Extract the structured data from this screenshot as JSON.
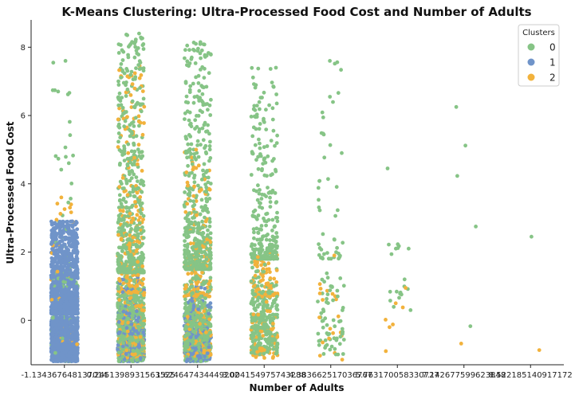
{
  "chart_data": {
    "type": "scatter",
    "subtype": "strip",
    "title": "K-Means Clustering: Ultra-Processed Food Cost and Number of Adults",
    "xlabel": "Number of Adults",
    "ylabel": "Ultra-Processed Food Cost",
    "categories": [
      "-1.134367648137014",
      "0.2451398931563525",
      "1.624647434449202",
      "3.004154975743288",
      "4.383662517036767",
      "5.763170058330727",
      "7.142677599623848",
      "8.522185140917172"
    ],
    "y_ticks": [
      0,
      2,
      4,
      6,
      8
    ],
    "ylim": [
      -1.3,
      8.8
    ],
    "grid": false,
    "legend": {
      "title": "Clusters",
      "position": "top-right",
      "entries": [
        "0",
        "1",
        "2"
      ]
    },
    "colors": {
      "0": "#86c486",
      "1": "#7094c9",
      "2": "#f2b23c"
    },
    "series": [
      {
        "name": "0",
        "stats": [
          {
            "category": "-1.134367648137014",
            "count": 120,
            "min": -1.2,
            "max": 7.6,
            "median": 1.0
          },
          {
            "category": "0.2451398931563525",
            "count": 1100,
            "min": -1.2,
            "max": 8.4,
            "median": 1.4
          },
          {
            "category": "1.624647434449202",
            "count": 1000,
            "min": -1.2,
            "max": 8.15,
            "median": 1.5
          },
          {
            "category": "3.004154975743288",
            "count": 550,
            "min": -1.0,
            "max": 7.4,
            "median": 1.8
          },
          {
            "category": "4.383662517036767",
            "count": 110,
            "min": -1.0,
            "max": 7.6,
            "median": 1.8
          },
          {
            "category": "5.763170058330727",
            "count": 20,
            "min": 0.3,
            "max": 4.45,
            "median": 2.1
          },
          {
            "category": "7.142677599623848",
            "count": 0,
            "min": null,
            "max": null,
            "median": null
          }
        ],
        "points": [
          {
            "category": "7.142677599623848",
            "y": 6.25
          },
          {
            "category": "7.142677599623848",
            "y": 5.12
          },
          {
            "category": "7.142677599623848",
            "y": 4.23
          },
          {
            "category": "7.142677599623848",
            "y": 2.75
          },
          {
            "category": "7.142677599623848",
            "y": -0.17
          },
          {
            "category": "8.522185140917172",
            "y": 2.45
          }
        ]
      },
      {
        "name": "1",
        "stats": [
          {
            "category": "-1.134367648137014",
            "count": 2600,
            "min": -1.2,
            "max": 2.9,
            "median": 0.2
          },
          {
            "category": "0.2451398931563525",
            "count": 260,
            "min": -1.2,
            "max": 1.4,
            "median": -0.4
          },
          {
            "category": "1.624647434449202",
            "count": 200,
            "min": -1.2,
            "max": 1.0,
            "median": -0.5
          },
          {
            "category": "3.004154975743288",
            "count": 0,
            "min": null,
            "max": null,
            "median": null
          }
        ]
      },
      {
        "name": "2",
        "stats": [
          {
            "category": "-1.134367648137014",
            "count": 45,
            "min": -0.7,
            "max": 3.6,
            "median": 0.6
          },
          {
            "category": "0.2451398931563525",
            "count": 400,
            "min": -1.1,
            "max": 7.45,
            "median": 0.8
          },
          {
            "category": "1.624647434449202",
            "count": 260,
            "min": -1.1,
            "max": 5.0,
            "median": 0.7
          },
          {
            "category": "3.004154975743288",
            "count": 140,
            "min": -1.1,
            "max": 2.0,
            "median": 0.7
          },
          {
            "category": "4.383662517036767",
            "count": 20,
            "min": -1.15,
            "max": 1.9,
            "median": 0.6
          }
        ],
        "points": [
          {
            "category": "5.763170058330727",
            "y": 0.95
          },
          {
            "category": "5.763170058330727",
            "y": 0.5
          },
          {
            "category": "5.763170058330727",
            "y": 0.38
          },
          {
            "category": "5.763170058330727",
            "y": 0.02
          },
          {
            "category": "5.763170058330727",
            "y": -0.12
          },
          {
            "category": "5.763170058330727",
            "y": -0.2
          },
          {
            "category": "5.763170058330727",
            "y": -0.9
          },
          {
            "category": "7.142677599623848",
            "y": -0.68
          },
          {
            "category": "8.522185140917172",
            "y": -0.87
          }
        ]
      }
    ]
  }
}
